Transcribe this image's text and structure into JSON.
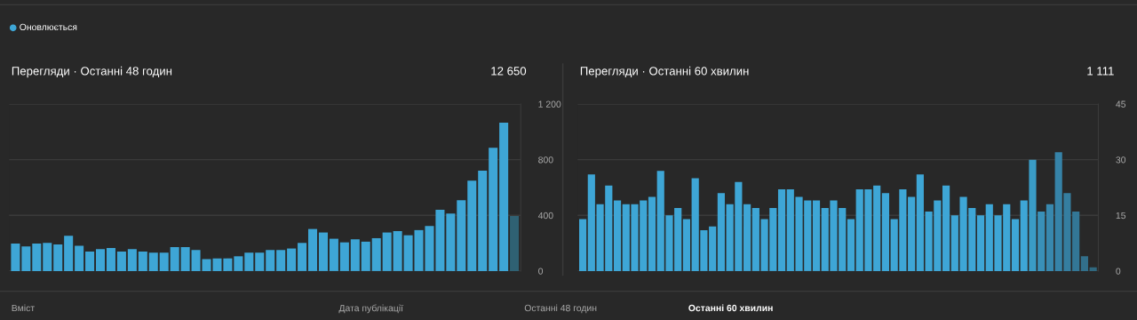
{
  "chart_data": [
    {
      "type": "bar",
      "title": "Перегляди · Останні 48 годин",
      "subtitle": "12 650",
      "annotations": [
        "Оновлюється",
        "Вміст",
        "Дата публікації",
        "Останні 48 годин",
        "Останні 60 хвилин"
      ],
      "categories": [
        null,
        null,
        null,
        null,
        null,
        null,
        null,
        null,
        null,
        null,
        null,
        null,
        null,
        null,
        null,
        null,
        null,
        null,
        null,
        null,
        null,
        null,
        null,
        null,
        null,
        null,
        null,
        null,
        null,
        null,
        null,
        null,
        null,
        null,
        null,
        null,
        null,
        null,
        null,
        null,
        null,
        null,
        null,
        null,
        null,
        null,
        null,
        null
      ],
      "values": [
        198,
        177,
        198,
        202,
        191,
        253,
        181,
        140,
        157,
        166,
        140,
        157,
        140,
        132,
        132,
        172,
        172,
        151,
        85,
        91,
        91,
        106,
        132,
        132,
        151,
        151,
        162,
        202,
        302,
        277,
        232,
        206,
        228,
        211,
        236,
        277,
        287,
        257,
        294,
        323,
        440,
        413,
        509,
        649,
        721,
        885,
        1066,
        396
      ],
      "colors": [
        "#3ea6d6",
        "#3ea6d6",
        "#3ea6d6",
        "#3ea6d6",
        "#3ea6d6",
        "#3ea6d6",
        "#3ea6d6",
        "#3ea6d6",
        "#3ea6d6",
        "#3ea6d6",
        "#3ea6d6",
        "#3ea6d6",
        "#3ea6d6",
        "#3ea6d6",
        "#3ea6d6",
        "#3ea6d6",
        "#3ea6d6",
        "#3ea6d6",
        "#3ea6d6",
        "#3ea6d6",
        "#3ea6d6",
        "#3ea6d6",
        "#3ea6d6",
        "#3ea6d6",
        "#3ea6d6",
        "#3ea6d6",
        "#3ea6d6",
        "#3ea6d6",
        "#3ea6d6",
        "#3ea6d6",
        "#3ea6d6",
        "#3ea6d6",
        "#3ea6d6",
        "#3ea6d6",
        "#3ea6d6",
        "#3ea6d6",
        "#3ea6d6",
        "#3ea6d6",
        "#3ea6d6",
        "#3ea6d6",
        "#3ea6d6",
        "#3ea6d6",
        "#3ea6d6",
        "#3ea6d6",
        "#3ea6d6",
        "#3ea6d6",
        "#3ea6d6",
        "#2f6173"
      ],
      "ylim": [
        0,
        1200
      ],
      "yticks": [
        0,
        {
          "value": 400,
          "label": "400"
        },
        {
          "value": 800,
          "label": "800"
        },
        {
          "value": 1200,
          "label": "1 200"
        }
      ],
      "grid": "y",
      "tick_labels": "y"
    },
    {
      "type": "bar",
      "title": "Перегляди · Останні 60 хвилин",
      "subtitle": "1 111",
      "categories": [
        null,
        null,
        null,
        null,
        null,
        null,
        null,
        null,
        null,
        null,
        null,
        null,
        null,
        null,
        null,
        null,
        null,
        null,
        null,
        null,
        null,
        null,
        null,
        null,
        null,
        null,
        null,
        null,
        null,
        null,
        null,
        null,
        null,
        null,
        null,
        null,
        null,
        null,
        null,
        null,
        null,
        null,
        null,
        null,
        null,
        null,
        null,
        null,
        null,
        null,
        null,
        null,
        null,
        null,
        null,
        null,
        null,
        null,
        null,
        null
      ],
      "values": [
        14,
        26,
        18,
        23,
        19,
        18,
        18,
        19,
        20,
        27,
        15,
        17,
        14,
        25,
        11,
        12,
        21,
        18,
        24,
        18,
        17,
        14,
        17,
        22,
        22,
        20,
        19,
        19,
        17,
        19,
        17,
        14,
        22,
        22,
        23,
        21,
        14,
        22,
        20,
        26,
        16,
        19,
        23,
        15,
        20,
        17,
        15,
        18,
        15,
        18,
        14,
        19,
        30,
        16,
        18,
        32,
        21,
        16,
        4,
        1
      ],
      "colors": [
        "#3ea6d6",
        "#3ea6d6",
        "#3ea6d6",
        "#3ea6d6",
        "#3ea6d6",
        "#3ea6d6",
        "#3ea6d6",
        "#3ea6d6",
        "#3ea6d6",
        "#3ea6d6",
        "#3ea6d6",
        "#3ea6d6",
        "#3ea6d6",
        "#3ea6d6",
        "#3ea6d6",
        "#3ea6d6",
        "#3ea6d6",
        "#3ea6d6",
        "#3ea6d6",
        "#3ea6d6",
        "#3ea6d6",
        "#3ea6d6",
        "#3ea6d6",
        "#3ea6d6",
        "#3ea6d6",
        "#3ea6d6",
        "#3ea6d6",
        "#3ea6d6",
        "#3ea6d6",
        "#3ea6d6",
        "#3ea6d6",
        "#3ea6d6",
        "#3ea6d6",
        "#3ea6d6",
        "#3ea6d6",
        "#3ea6d6",
        "#3ea6d6",
        "#3ea6d6",
        "#3ea6d6",
        "#3ea6d6",
        "#3ea6d6",
        "#3ea6d6",
        "#3ea6d6",
        "#3ea6d6",
        "#3ea6d6",
        "#3ea6d6",
        "#3ea6d6",
        "#3ea6d6",
        "#3ea6d6",
        "#3ea6d6",
        "#3ea6d6",
        "#3ea6d6",
        "#3a9cc6",
        "#3990b8",
        "#3888ae",
        "#3683a8",
        "#357ea0",
        "#337796",
        "#326f8a",
        "#30687f"
      ],
      "ylim": [
        0,
        45
      ],
      "yticks": [
        0,
        15,
        30,
        45
      ],
      "grid": "y",
      "tick_labels": "y"
    }
  ]
}
